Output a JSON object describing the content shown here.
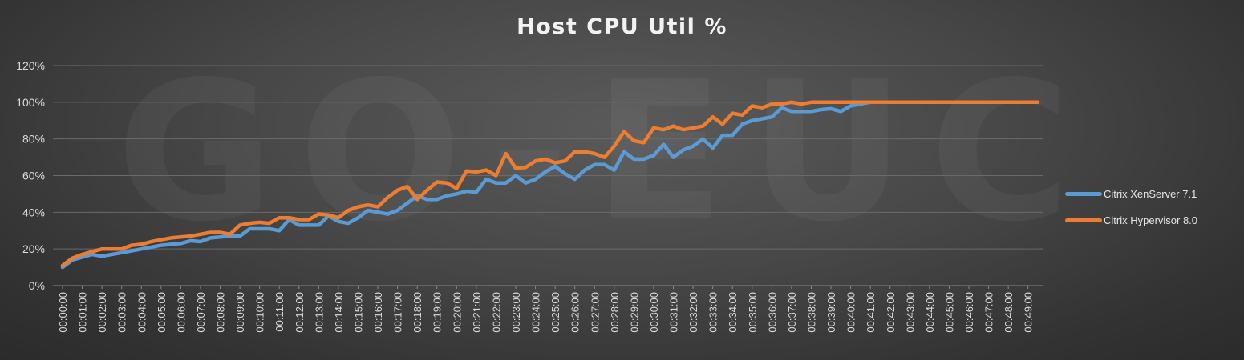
{
  "chart_data": {
    "type": "line",
    "title": "Host CPU Util %",
    "watermark": "GO-EUC",
    "xlabel": "",
    "ylabel": "",
    "ylim": [
      0,
      1.2
    ],
    "y_ticks": [
      "0%",
      "20%",
      "40%",
      "60%",
      "80%",
      "100%",
      "120%"
    ],
    "x_tick_labels": [
      "00:00:00",
      "00:01:00",
      "00:02:00",
      "00:03:00",
      "00:04:00",
      "00:05:00",
      "00:06:00",
      "00:07:00",
      "00:08:00",
      "00:09:00",
      "00:10:00",
      "00:11:00",
      "00:12:00",
      "00:13:00",
      "00:14:00",
      "00:15:00",
      "00:16:00",
      "00:17:00",
      "00:18:00",
      "00:19:00",
      "00:20:00",
      "00:21:00",
      "00:22:00",
      "00:23:00",
      "00:24:00",
      "00:25:00",
      "00:26:00",
      "00:27:00",
      "00:28:00",
      "00:29:00",
      "00:30:00",
      "00:31:00",
      "00:32:00",
      "00:33:00",
      "00:34:00",
      "00:35:00",
      "00:36:00",
      "00:37:00",
      "00:38:00",
      "00:39:00",
      "00:40:00",
      "00:41:00",
      "00:42:00",
      "00:43:00",
      "00:44:00",
      "00:45:00",
      "00:46:00",
      "00:47:00",
      "00:48:00",
      "00:49:00"
    ],
    "points_per_label": 2,
    "grid": true,
    "legend_position": "right",
    "series": [
      {
        "name": "Citrix XenServer 7.1",
        "color": "#5b9bd5",
        "values": [
          0.1,
          0.14,
          0.155,
          0.17,
          0.16,
          0.17,
          0.18,
          0.19,
          0.2,
          0.21,
          0.22,
          0.225,
          0.23,
          0.245,
          0.24,
          0.26,
          0.265,
          0.27,
          0.27,
          0.31,
          0.31,
          0.31,
          0.3,
          0.36,
          0.33,
          0.33,
          0.33,
          0.38,
          0.35,
          0.34,
          0.37,
          0.41,
          0.4,
          0.39,
          0.41,
          0.45,
          0.49,
          0.47,
          0.47,
          0.49,
          0.5,
          0.515,
          0.51,
          0.58,
          0.56,
          0.56,
          0.6,
          0.56,
          0.58,
          0.62,
          0.65,
          0.61,
          0.58,
          0.63,
          0.66,
          0.66,
          0.63,
          0.73,
          0.69,
          0.69,
          0.71,
          0.77,
          0.7,
          0.74,
          0.76,
          0.8,
          0.75,
          0.82,
          0.82,
          0.88,
          0.9,
          0.91,
          0.92,
          0.97,
          0.95,
          0.95,
          0.95,
          0.96,
          0.965,
          0.95,
          0.98,
          0.99,
          1.0,
          1.0,
          1.0,
          1.0,
          1.0,
          1.0,
          1.0,
          1.0,
          1.0,
          1.0,
          1.0,
          1.0,
          1.0,
          1.0,
          1.0,
          1.0,
          1.0,
          1.0
        ]
      },
      {
        "name": "Citrix Hypervisor 8.0",
        "color": "#ed7d31",
        "values": [
          0.11,
          0.15,
          0.17,
          0.185,
          0.2,
          0.2,
          0.2,
          0.22,
          0.225,
          0.24,
          0.25,
          0.26,
          0.265,
          0.27,
          0.28,
          0.29,
          0.29,
          0.28,
          0.33,
          0.34,
          0.345,
          0.34,
          0.37,
          0.37,
          0.36,
          0.36,
          0.39,
          0.385,
          0.37,
          0.41,
          0.43,
          0.44,
          0.43,
          0.48,
          0.52,
          0.54,
          0.47,
          0.52,
          0.565,
          0.56,
          0.53,
          0.625,
          0.62,
          0.63,
          0.6,
          0.72,
          0.64,
          0.645,
          0.68,
          0.69,
          0.67,
          0.68,
          0.73,
          0.73,
          0.72,
          0.7,
          0.76,
          0.84,
          0.79,
          0.78,
          0.86,
          0.85,
          0.87,
          0.85,
          0.86,
          0.87,
          0.92,
          0.88,
          0.94,
          0.93,
          0.98,
          0.97,
          0.99,
          0.99,
          1.0,
          0.99,
          1.0,
          1.0,
          1.0,
          1.0,
          1.0,
          1.0,
          1.0,
          1.0,
          1.0,
          1.0,
          1.0,
          1.0,
          1.0,
          1.0,
          1.0,
          1.0,
          1.0,
          1.0,
          1.0,
          1.0,
          1.0,
          1.0,
          1.0,
          1.0
        ]
      }
    ]
  }
}
